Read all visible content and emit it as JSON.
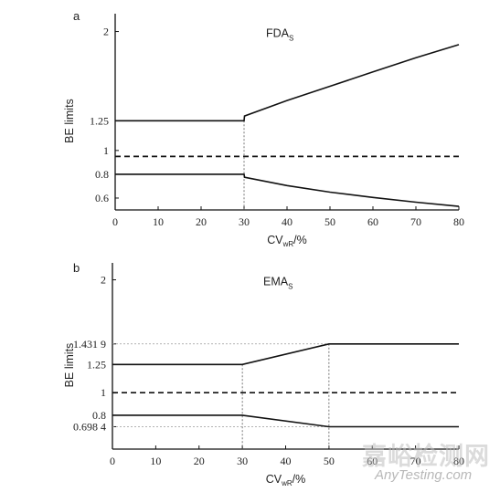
{
  "chart_data": [
    {
      "type": "line",
      "panel_letter": "a",
      "annotation": "FDA",
      "annotation_sub": "S",
      "xlabel": "CV",
      "xlabel_sub": "wR",
      "xlabel_suffix": "/%",
      "ylabel": "BE limits",
      "xlim": [
        0,
        80
      ],
      "ylim": [
        0.5,
        2.15
      ],
      "x_ticks": [
        "0",
        "10",
        "20",
        "30",
        "40",
        "50",
        "60",
        "70",
        "80"
      ],
      "y_ticks": [
        {
          "value": 0.6,
          "label": "0.6"
        },
        {
          "value": 0.8,
          "label": "0.8"
        },
        {
          "value": 1,
          "label": "1"
        },
        {
          "value": 1.25,
          "label": "1.25"
        },
        {
          "value": 2,
          "label": "2"
        }
      ],
      "series": [
        {
          "style": "solid",
          "x": [
            0,
            30,
            30.1,
            40,
            50,
            60,
            70,
            80
          ],
          "y": [
            1.25,
            1.25,
            1.29,
            1.42,
            1.54,
            1.66,
            1.78,
            1.89
          ]
        },
        {
          "style": "solid",
          "x": [
            0,
            30,
            30.1,
            40,
            50,
            60,
            70,
            80
          ],
          "y": [
            0.8,
            0.8,
            0.775,
            0.705,
            0.65,
            0.605,
            0.565,
            0.53
          ]
        },
        {
          "style": "dashed",
          "x": [
            0,
            80
          ],
          "y": [
            0.95,
            0.95
          ]
        }
      ],
      "guides": [
        {
          "x": 30,
          "y": 1.25
        }
      ]
    },
    {
      "type": "line",
      "panel_letter": "b",
      "annotation": "EMA",
      "annotation_sub": "S",
      "xlabel": "CV",
      "xlabel_sub": "wR",
      "xlabel_suffix": "/%",
      "ylabel": "BE limits",
      "xlim": [
        0,
        80
      ],
      "ylim": [
        0.5,
        2.15
      ],
      "x_ticks": [
        "0",
        "10",
        "20",
        "30",
        "40",
        "50",
        "60",
        "70",
        "80"
      ],
      "y_ticks": [
        {
          "value": 0.6984,
          "label": "0.698 4"
        },
        {
          "value": 0.8,
          "label": "0.8"
        },
        {
          "value": 1,
          "label": "1"
        },
        {
          "value": 1.25,
          "label": "1.25"
        },
        {
          "value": 1.4319,
          "label": "1.431 9"
        },
        {
          "value": 2,
          "label": "2"
        }
      ],
      "series": [
        {
          "style": "solid",
          "x": [
            0,
            30,
            50,
            80
          ],
          "y": [
            1.25,
            1.25,
            1.4319,
            1.4319
          ]
        },
        {
          "style": "solid",
          "x": [
            0,
            30,
            50,
            80
          ],
          "y": [
            0.8,
            0.8,
            0.6984,
            0.6984
          ]
        },
        {
          "style": "dashed",
          "x": [
            0,
            80
          ],
          "y": [
            1,
            1
          ]
        }
      ],
      "guides": [
        {
          "x": 30,
          "y": 1.25
        },
        {
          "x": 50,
          "y": 1.4319
        }
      ]
    }
  ],
  "watermark": {
    "cn": "嘉峪检测网",
    "en": "AnyTesting.com"
  }
}
